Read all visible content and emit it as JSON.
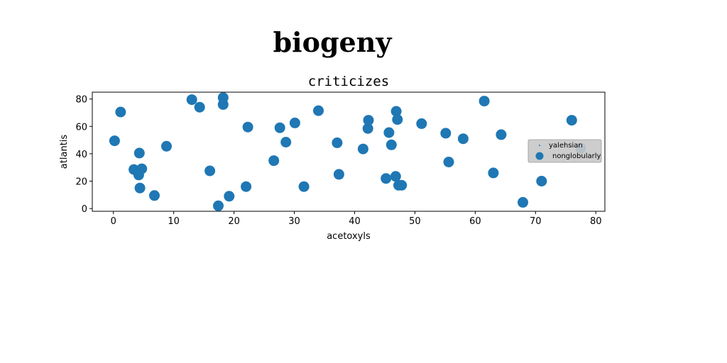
{
  "figure": {
    "title": "biogeny"
  },
  "chart_data": {
    "type": "scatter",
    "title": "criticizes",
    "xlabel": "acetoxyls",
    "ylabel": "atlantis",
    "xlim": [
      -3.5,
      81.5
    ],
    "ylim": [
      -2,
      85
    ],
    "xticks": [
      0,
      10,
      20,
      30,
      40,
      50,
      60,
      70,
      80
    ],
    "yticks": [
      0,
      20,
      40,
      60,
      80
    ],
    "grid": false,
    "legend_position": "right",
    "series": [
      {
        "name": "yalehsian",
        "color": "#1f77b4",
        "marker": "tiny",
        "points": []
      },
      {
        "name": "nonglobularly",
        "color": "#1f77b4",
        "marker": "circle",
        "points": [
          [
            0.2,
            49.5
          ],
          [
            1.2,
            70.5
          ],
          [
            3.4,
            28.5
          ],
          [
            4.2,
            24.5
          ],
          [
            4.3,
            40.5
          ],
          [
            4.4,
            15.0
          ],
          [
            4.7,
            29.0
          ],
          [
            6.8,
            9.5
          ],
          [
            8.8,
            45.5
          ],
          [
            13.0,
            79.5
          ],
          [
            14.3,
            74.0
          ],
          [
            16.0,
            27.5
          ],
          [
            17.4,
            2.0
          ],
          [
            18.2,
            76.0
          ],
          [
            18.2,
            81.0
          ],
          [
            19.2,
            9.0
          ],
          [
            22.0,
            16.0
          ],
          [
            22.3,
            59.5
          ],
          [
            26.6,
            35.0
          ],
          [
            27.6,
            59.0
          ],
          [
            28.6,
            48.5
          ],
          [
            30.1,
            62.5
          ],
          [
            31.6,
            16.0
          ],
          [
            34.0,
            71.5
          ],
          [
            37.1,
            48.0
          ],
          [
            37.4,
            25.0
          ],
          [
            41.4,
            43.5
          ],
          [
            42.2,
            58.5
          ],
          [
            42.3,
            64.5
          ],
          [
            45.2,
            22.0
          ],
          [
            45.7,
            55.5
          ],
          [
            46.1,
            46.5
          ],
          [
            46.8,
            23.5
          ],
          [
            46.9,
            71.0
          ],
          [
            47.1,
            65.0
          ],
          [
            47.3,
            17.0
          ],
          [
            47.8,
            17.0
          ],
          [
            51.1,
            62.0
          ],
          [
            55.1,
            55.0
          ],
          [
            55.6,
            34.0
          ],
          [
            58.0,
            51.0
          ],
          [
            61.5,
            78.5
          ],
          [
            63.0,
            26.0
          ],
          [
            64.3,
            54.0
          ],
          [
            67.9,
            4.5
          ],
          [
            71.0,
            20.0
          ],
          [
            76.0,
            64.5
          ],
          [
            77.5,
            44.0
          ]
        ]
      }
    ]
  }
}
